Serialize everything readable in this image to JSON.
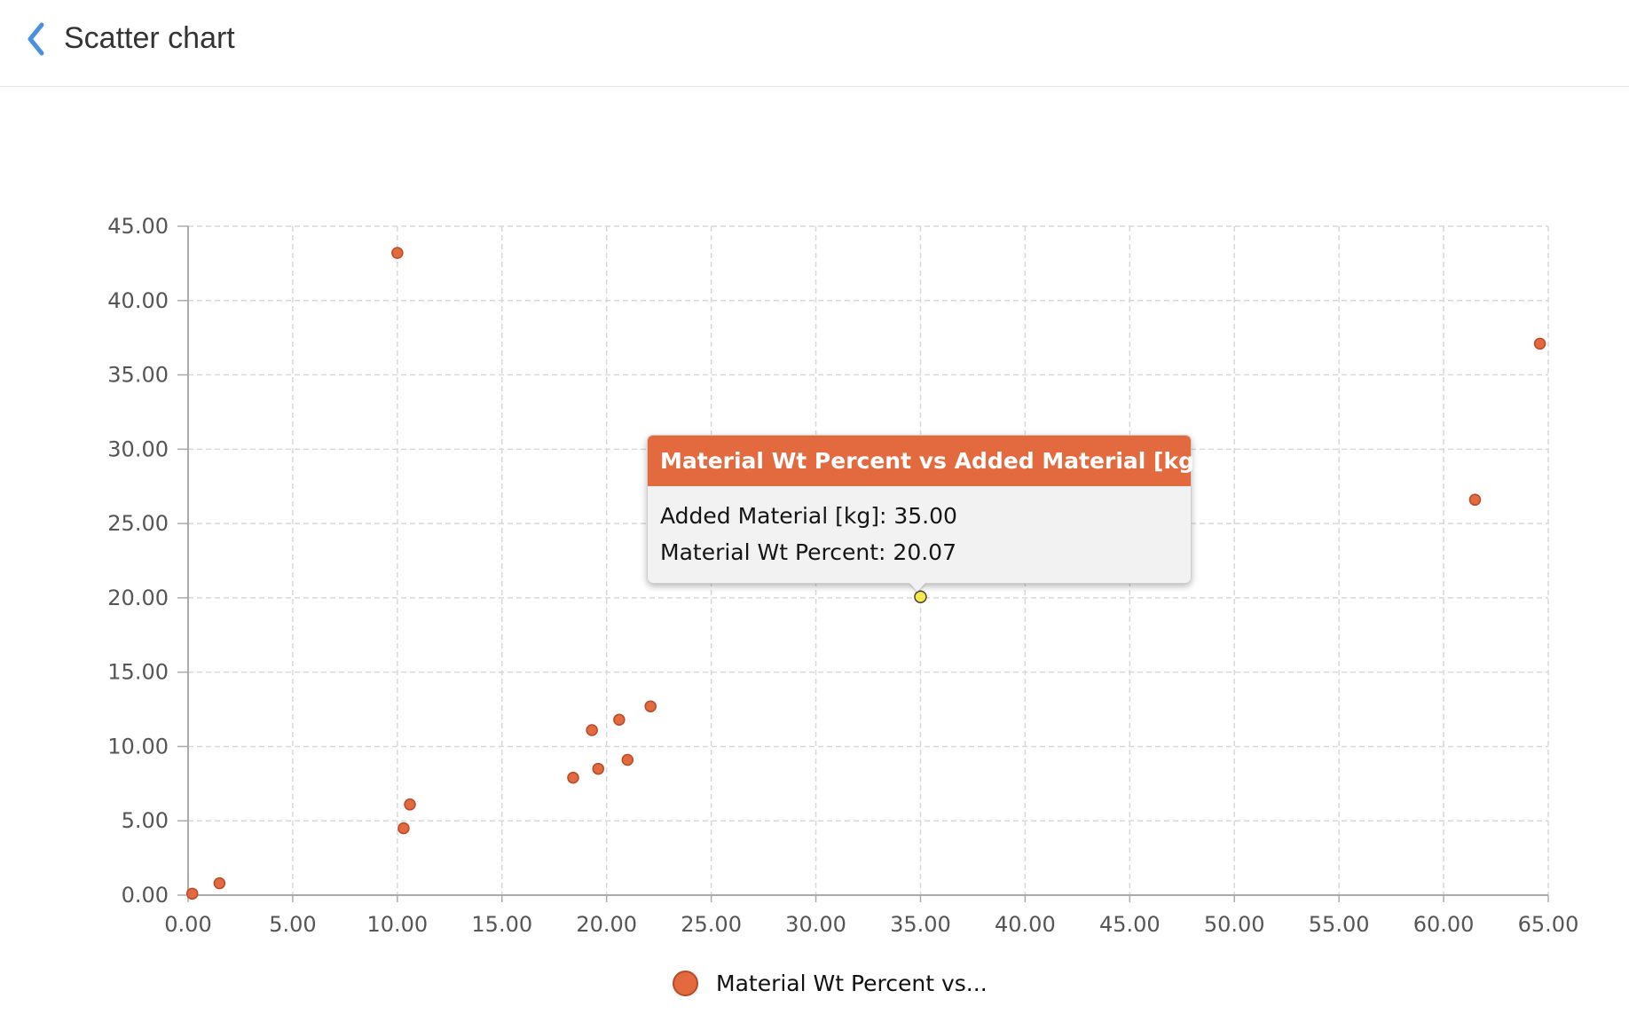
{
  "header": {
    "title": "Scatter chart",
    "back_icon": "chevron-left-icon"
  },
  "colors": {
    "accent": "#4a90e2",
    "series": "#e36a3f",
    "series_outline": "#b84a28",
    "highlight": "#f7e84b",
    "grid": "#d8d8d8",
    "axis": "#aaaaaa"
  },
  "chart_data": {
    "type": "scatter",
    "title": "",
    "xlabel": "",
    "ylabel": "",
    "xlim": [
      0,
      65
    ],
    "ylim": [
      0,
      45
    ],
    "x_ticks": [
      "0.00",
      "5.00",
      "10.00",
      "15.00",
      "20.00",
      "25.00",
      "30.00",
      "35.00",
      "40.00",
      "45.00",
      "50.00",
      "55.00",
      "60.00",
      "65.00"
    ],
    "y_ticks": [
      "0.00",
      "5.00",
      "10.00",
      "15.00",
      "20.00",
      "25.00",
      "30.00",
      "35.00",
      "40.00",
      "45.00"
    ],
    "grid": true,
    "legend_position": "bottom-center",
    "series": [
      {
        "name": "Material Wt Percent vs Added Material [kg]",
        "legend_label": "Material Wt Percent vs...",
        "points": [
          {
            "x": 0.2,
            "y": 0.1
          },
          {
            "x": 1.5,
            "y": 0.8
          },
          {
            "x": 10.0,
            "y": 43.2
          },
          {
            "x": 10.3,
            "y": 4.5
          },
          {
            "x": 10.6,
            "y": 6.1
          },
          {
            "x": 18.4,
            "y": 7.9
          },
          {
            "x": 19.3,
            "y": 11.1
          },
          {
            "x": 19.6,
            "y": 8.5
          },
          {
            "x": 20.6,
            "y": 11.8
          },
          {
            "x": 21.0,
            "y": 9.1
          },
          {
            "x": 22.1,
            "y": 12.7
          },
          {
            "x": 35.0,
            "y": 20.07,
            "highlighted": true
          },
          {
            "x": 61.5,
            "y": 26.6
          },
          {
            "x": 64.6,
            "y": 37.1
          }
        ]
      }
    ]
  },
  "tooltip": {
    "title": "Material Wt Percent vs Added Material [kg]",
    "line1": "Added Material [kg]: 35.00",
    "line2": "Material Wt Percent: 20.07"
  }
}
